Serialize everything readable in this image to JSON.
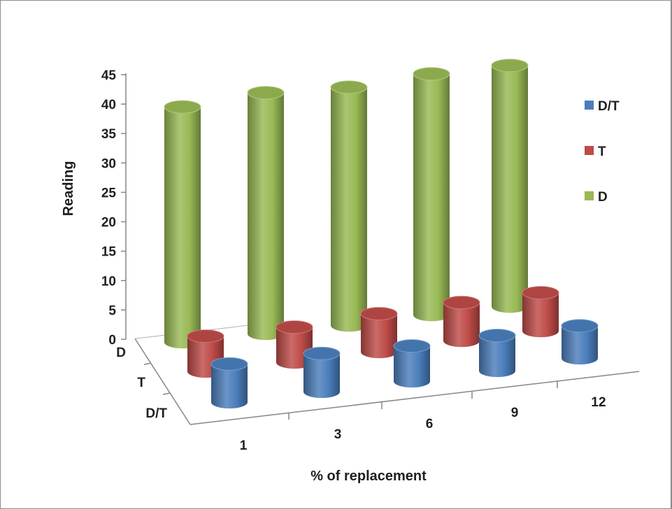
{
  "chart_data": {
    "type": "bar",
    "subtype": "3d-cylinder",
    "title": "",
    "xlabel": "% of replacement",
    "ylabel": "Reading",
    "categories": [
      "1",
      "3",
      "6",
      "9",
      "12"
    ],
    "depth_labels": [
      "D",
      "T",
      "D/T"
    ],
    "yticks": [
      "0",
      "5",
      "10",
      "15",
      "20",
      "25",
      "30",
      "35",
      "40",
      "45"
    ],
    "ylim": [
      0,
      45
    ],
    "grid": false,
    "legend_position": "right",
    "series": [
      {
        "name": "D/T",
        "color": "#4A7EBB",
        "values": [
          6.5,
          6.5,
          6.0,
          6.0,
          5.5
        ]
      },
      {
        "name": "T",
        "color": "#BE4B48",
        "values": [
          6.0,
          6.0,
          6.5,
          6.5,
          6.5
        ]
      },
      {
        "name": "D",
        "color": "#98B954",
        "values": [
          40,
          41,
          40.5,
          41,
          41
        ]
      }
    ]
  }
}
